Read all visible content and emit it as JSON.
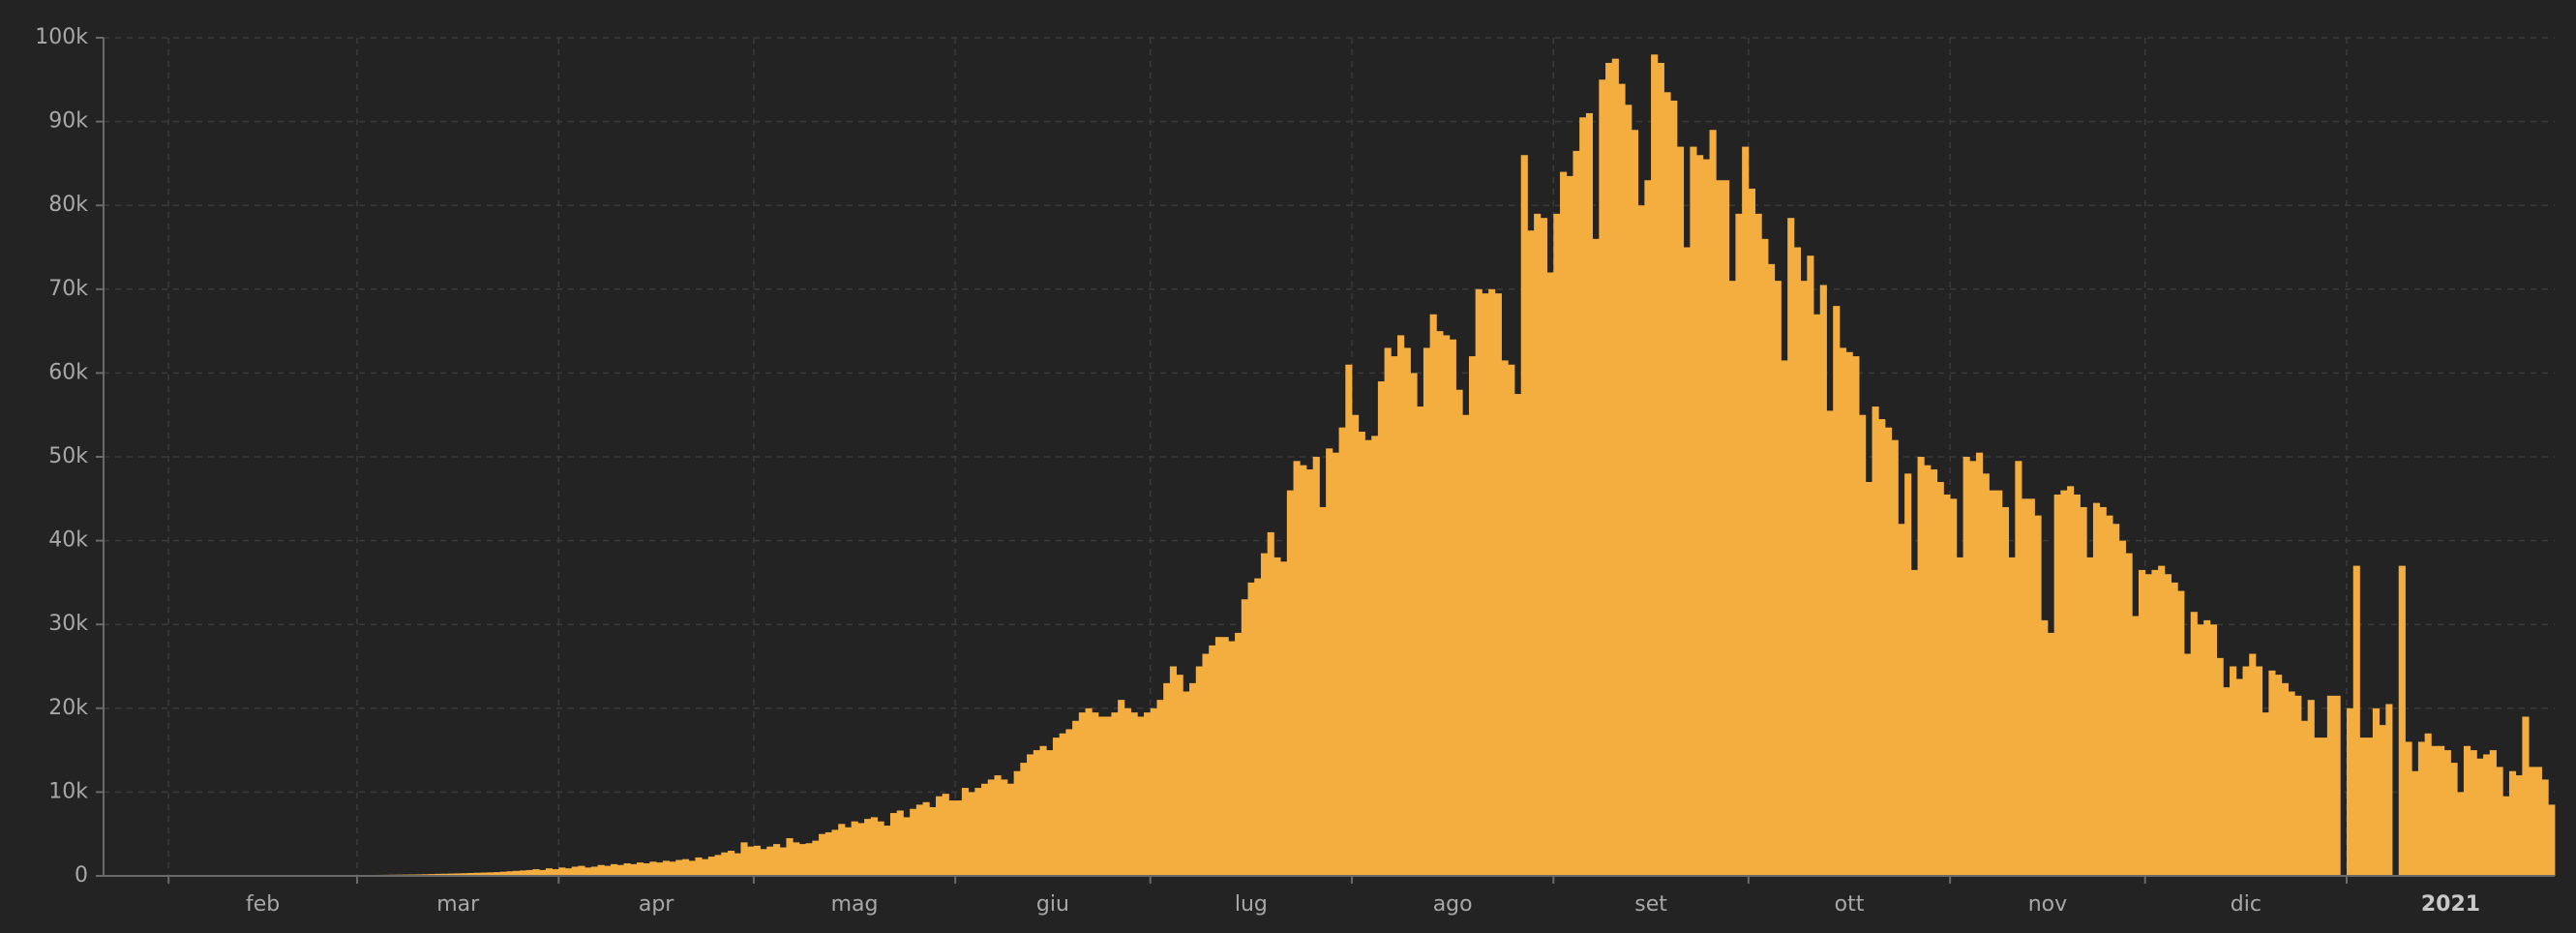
{
  "chart_data": {
    "type": "bar",
    "color": "#f4ae3f",
    "grid": true,
    "xlim": [
      0,
      377
    ],
    "xticks": [
      {
        "value": 10,
        "label": "feb"
      },
      {
        "value": 39,
        "label": "mar"
      },
      {
        "value": 70,
        "label": "apr"
      },
      {
        "value": 100,
        "label": "mag"
      },
      {
        "value": 131,
        "label": "giu"
      },
      {
        "value": 161,
        "label": "lug"
      },
      {
        "value": 192,
        "label": "ago"
      },
      {
        "value": 223,
        "label": "set"
      },
      {
        "value": 253,
        "label": "ott"
      },
      {
        "value": 284,
        "label": "nov"
      },
      {
        "value": 314,
        "label": "dic"
      },
      {
        "value": 345,
        "label": "2021"
      }
    ],
    "ylim": [
      0,
      100000
    ],
    "yticks": [
      0,
      {
        "value": 10000,
        "label": "10k"
      },
      {
        "value": 20000,
        "label": "20k"
      },
      {
        "value": 30000,
        "label": "30k"
      },
      {
        "value": 40000,
        "label": "40k"
      },
      {
        "value": 50000,
        "label": "50k"
      },
      {
        "value": 60000,
        "label": "60k"
      },
      {
        "value": 70000,
        "label": "70k"
      },
      {
        "value": 80000,
        "label": "80k"
      },
      {
        "value": 90000,
        "label": "90k"
      },
      {
        "value": 100000,
        "label": "100k"
      }
    ],
    "values": [
      0,
      0,
      1,
      0,
      1,
      2,
      1,
      1,
      2,
      3,
      2,
      3,
      2,
      3,
      2,
      4,
      3,
      4,
      3,
      5,
      4,
      5,
      6,
      5,
      4,
      6,
      5,
      6,
      8,
      7,
      10,
      15,
      20,
      30,
      40,
      50,
      60,
      50,
      70,
      80,
      90,
      100,
      120,
      130,
      140,
      150,
      160,
      170,
      180,
      200,
      220,
      250,
      260,
      280,
      300,
      320,
      350,
      380,
      400,
      420,
      450,
      500,
      550,
      600,
      650,
      700,
      800,
      700,
      900,
      800,
      1000,
      900,
      1100,
      1200,
      1000,
      1100,
      1300,
      1200,
      1400,
      1300,
      1500,
      1400,
      1600,
      1500,
      1700,
      1600,
      1800,
      1700,
      1900,
      2000,
      1800,
      2200,
      2000,
      2300,
      2500,
      2800,
      3000,
      2700,
      4000,
      3500,
      3600,
      3200,
      3500,
      3800,
      3400,
      4500,
      4000,
      3800,
      3900,
      4200,
      5000,
      5200,
      5500,
      6200,
      5800,
      6500,
      6300,
      6800,
      7000,
      6500,
      6000,
      7500,
      7800,
      7000,
      8000,
      8500,
      8800,
      8200,
      9500,
      9800,
      9000,
      9000,
      10500,
      10000,
      10500,
      11000,
      11500,
      12000,
      11500,
      11000,
      12500,
      13500,
      14500,
      15000,
      15500,
      15000,
      16500,
      17000,
      17500,
      18500,
      19500,
      20000,
      19500,
      19000,
      19000,
      19500,
      21000,
      20000,
      19500,
      19000,
      19500,
      20000,
      21000,
      23000,
      25000,
      24000,
      22000,
      23000,
      25000,
      26500,
      27500,
      28500,
      28500,
      28000,
      29000,
      33000,
      35000,
      35500,
      38500,
      41000,
      38000,
      37500,
      46000,
      49500,
      49000,
      48500,
      50000,
      44000,
      51000,
      50500,
      53500,
      61000,
      55000,
      53000,
      52000,
      52500,
      59000,
      63000,
      62000,
      64500,
      63000,
      60000,
      56000,
      63000,
      67000,
      65000,
      64500,
      64000,
      58000,
      55000,
      62000,
      70000,
      69500,
      70000,
      69500,
      61500,
      61000,
      57500,
      86000,
      77000,
      79000,
      78500,
      72000,
      79000,
      84000,
      83500,
      86500,
      90500,
      91000,
      76000,
      95000,
      97000,
      97500,
      94500,
      92000,
      89000,
      80000,
      83000,
      98000,
      97000,
      93500,
      92500,
      87000,
      75000,
      87000,
      86000,
      85500,
      89000,
      83000,
      83000,
      71000,
      79000,
      87000,
      82000,
      79000,
      76000,
      73000,
      71000,
      61500,
      78500,
      75000,
      71000,
      74000,
      67000,
      70500,
      55500,
      68000,
      63000,
      62500,
      62000,
      55000,
      47000,
      56000,
      54500,
      53500,
      52000,
      42000,
      48000,
      36500,
      50000,
      49000,
      48500,
      47000,
      45500,
      45000,
      38000,
      50000,
      49500,
      50500,
      48000,
      46000,
      46000,
      44000,
      38000,
      49500,
      45000,
      45000,
      43000,
      30500,
      29000,
      45500,
      46000,
      46500,
      45500,
      44000,
      38000,
      44500,
      44000,
      43000,
      42000,
      40000,
      38500,
      31000,
      36500,
      36000,
      36500,
      37000,
      36000,
      35000,
      34000,
      26500,
      31500,
      30000,
      30500,
      30000,
      26000,
      22500,
      25000,
      23500,
      25000,
      26500,
      25000,
      19500,
      24500,
      24000,
      23000,
      22000,
      21500,
      18500,
      21000,
      16500,
      16500,
      21500,
      21500,
      0,
      20000,
      37000,
      16500,
      16500,
      20000,
      18000,
      20500,
      0,
      37000,
      16000,
      12500,
      16000,
      17000,
      15500,
      15500,
      15000,
      13500,
      10000,
      15500,
      15000,
      14000,
      14500,
      15000,
      13000,
      9500,
      12500,
      12000,
      19000,
      13000,
      13000,
      11500,
      8500
    ]
  }
}
